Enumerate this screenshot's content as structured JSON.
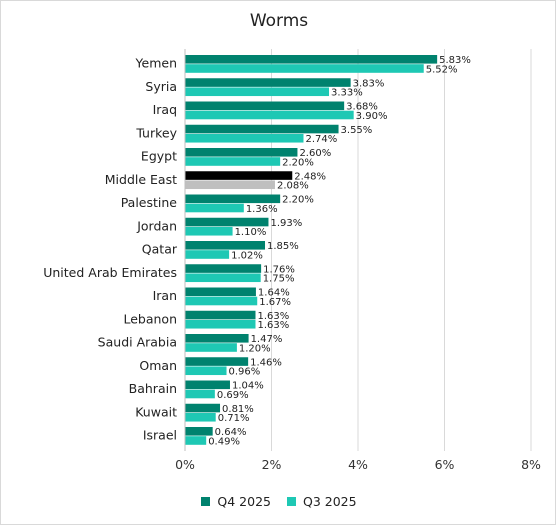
{
  "chart_data": {
    "type": "bar",
    "orientation": "horizontal",
    "title": "Worms",
    "categories": [
      "Yemen",
      "Syria",
      "Iraq",
      "Turkey",
      "Egypt",
      "Middle East",
      "Palestine",
      "Jordan",
      "Qatar",
      "United Arab Emirates",
      "Iran",
      "Lebanon",
      "Saudi Arabia",
      "Oman",
      "Bahrain",
      "Kuwait",
      "Israel"
    ],
    "series": [
      {
        "name": "Q4 2025",
        "color": "#00826e",
        "values": [
          5.83,
          3.83,
          3.68,
          3.55,
          2.6,
          2.48,
          2.2,
          1.93,
          1.85,
          1.76,
          1.64,
          1.63,
          1.47,
          1.46,
          1.04,
          0.81,
          0.64
        ]
      },
      {
        "name": "Q3 2025",
        "color": "#1ec8b4",
        "values": [
          5.52,
          3.33,
          3.9,
          2.74,
          2.2,
          2.08,
          1.36,
          1.1,
          1.02,
          1.75,
          1.67,
          1.63,
          1.2,
          0.96,
          0.69,
          0.71,
          0.49
        ]
      }
    ],
    "highlight": {
      "category": "Middle East",
      "colors": [
        "#000000",
        "#bfbfbf"
      ]
    },
    "value_labels": {
      "Q4 2025": [
        "5.83%",
        "3.83%",
        "3.68%",
        "3.55%",
        "2.60%",
        "2.48%",
        "2.20%",
        "1.93%",
        "1.85%",
        "1.76%",
        "1.64%",
        "1.63%",
        "1.47%",
        "1.46%",
        "1.04%",
        "0.81%",
        "0.64%"
      ],
      "Q3 2025": [
        "5.52%",
        "3.33%",
        "3.90%",
        "2.74%",
        "2.20%",
        "2.08%",
        "1.36%",
        "1.10%",
        "1.02%",
        "1.75%",
        "1.67%",
        "1.63%",
        "1.20%",
        "0.96%",
        "0.69%",
        "0.71%",
        "0.49%"
      ]
    },
    "xlim": [
      0,
      8
    ],
    "xticks": [
      0,
      2,
      4,
      6,
      8
    ],
    "xtick_labels": [
      "0%",
      "2%",
      "4%",
      "6%",
      "8%"
    ],
    "grid": "vertical",
    "legend": "bottom"
  }
}
